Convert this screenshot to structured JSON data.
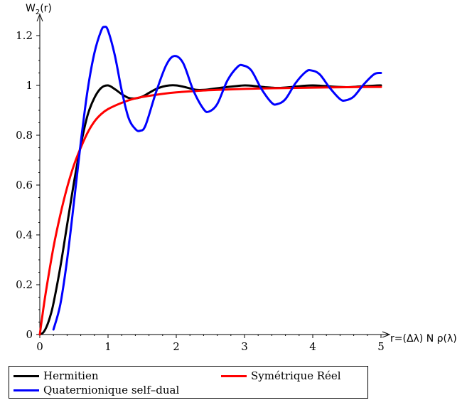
{
  "chart_data": {
    "type": "line",
    "ylabel_main": "W",
    "ylabel_sub": "2",
    "ylabel_tail": "(r)",
    "xlabel": "r=(Δλ) N ρ(λ)",
    "xlim": [
      0,
      5
    ],
    "ylim": [
      0,
      1.25
    ],
    "xticks": [
      0,
      1,
      2,
      3,
      4,
      5
    ],
    "xtick_labels": [
      "0",
      "1",
      "2",
      "3",
      "4",
      "5"
    ],
    "yticks": [
      0,
      0.2,
      0.4,
      0.6,
      0.8,
      1.0,
      1.2
    ],
    "ytick_labels": [
      "0",
      "0.2",
      "0.4",
      "0.6",
      "0.8",
      "1",
      "1.2"
    ],
    "grid": false,
    "legend_position": "bottom",
    "series": [
      {
        "name": "Hermitien",
        "color": "#000000",
        "x": [
          0,
          0.05,
          0.1,
          0.15,
          0.2,
          0.3,
          0.4,
          0.5,
          0.6,
          0.7,
          0.8,
          0.9,
          1.0,
          1.1,
          1.2,
          1.3,
          1.4,
          1.5,
          1.6,
          1.7,
          1.8,
          1.9,
          2.0,
          2.1,
          2.2,
          2.3,
          2.4,
          2.5,
          2.7,
          2.9,
          3.0,
          3.1,
          3.3,
          3.5,
          3.7,
          3.9,
          4.0,
          4.1,
          4.3,
          4.5,
          4.7,
          4.9,
          5.0
        ],
        "y": [
          0,
          0.008,
          0.032,
          0.071,
          0.125,
          0.27,
          0.44,
          0.61,
          0.76,
          0.88,
          0.95,
          0.99,
          1.0,
          0.985,
          0.965,
          0.95,
          0.948,
          0.955,
          0.97,
          0.985,
          0.995,
          1.0,
          1.0,
          0.995,
          0.988,
          0.982,
          0.982,
          0.985,
          0.992,
          0.998,
          1.0,
          0.999,
          0.993,
          0.99,
          0.994,
          0.999,
          1.0,
          0.999,
          0.995,
          0.993,
          0.996,
          0.999,
          1.0
        ]
      },
      {
        "name": "Symétrique Réel",
        "color": "#ff0000",
        "x": [
          0,
          0.05,
          0.1,
          0.2,
          0.3,
          0.4,
          0.5,
          0.6,
          0.7,
          0.8,
          0.9,
          1.0,
          1.2,
          1.4,
          1.6,
          1.8,
          2.0,
          2.3,
          2.6,
          3.0,
          3.5,
          4.0,
          4.5,
          5.0
        ],
        "y": [
          0,
          0.1,
          0.19,
          0.35,
          0.48,
          0.59,
          0.68,
          0.75,
          0.81,
          0.855,
          0.885,
          0.905,
          0.93,
          0.948,
          0.958,
          0.966,
          0.972,
          0.978,
          0.982,
          0.986,
          0.989,
          0.991,
          0.993,
          0.994
        ]
      },
      {
        "name": "Quaternionique self–dual",
        "color": "#0000ff",
        "x": [
          0.2,
          0.3,
          0.4,
          0.5,
          0.6,
          0.7,
          0.8,
          0.9,
          0.95,
          1.0,
          1.1,
          1.2,
          1.3,
          1.4,
          1.47,
          1.55,
          1.7,
          1.85,
          1.97,
          2.1,
          2.25,
          2.4,
          2.48,
          2.6,
          2.75,
          2.9,
          2.98,
          3.1,
          3.25,
          3.4,
          3.48,
          3.6,
          3.75,
          3.9,
          3.98,
          4.1,
          4.25,
          4.4,
          4.48,
          4.6,
          4.75,
          4.9,
          5.0
        ],
        "y": [
          0.02,
          0.12,
          0.3,
          0.53,
          0.77,
          0.98,
          1.13,
          1.22,
          1.235,
          1.22,
          1.12,
          0.98,
          0.87,
          0.825,
          0.818,
          0.84,
          0.97,
          1.08,
          1.118,
          1.09,
          0.98,
          0.905,
          0.895,
          0.925,
          1.02,
          1.075,
          1.08,
          1.06,
          0.985,
          0.93,
          0.925,
          0.945,
          1.01,
          1.055,
          1.06,
          1.045,
          0.99,
          0.945,
          0.94,
          0.955,
          1.005,
          1.045,
          1.05
        ]
      }
    ]
  }
}
